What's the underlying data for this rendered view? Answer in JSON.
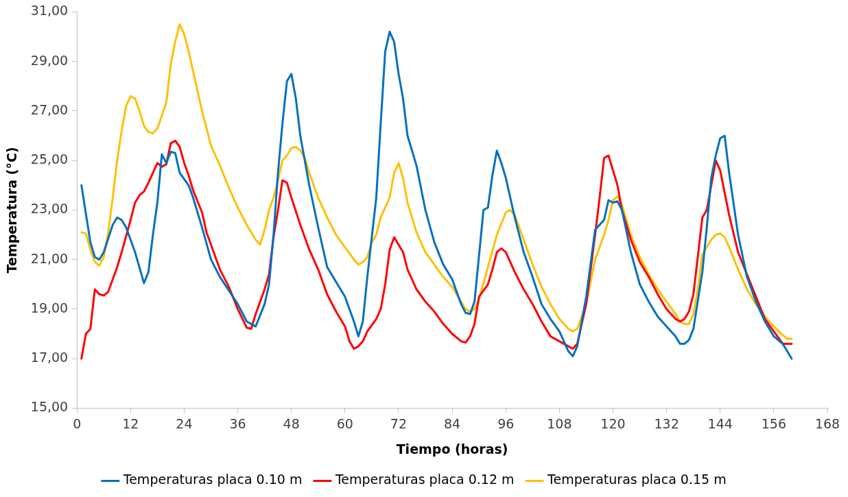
{
  "chart_data": {
    "type": "line",
    "xlabel": "Tiempo (horas)",
    "ylabel": "Temperatura (°C)",
    "xlim": [
      0,
      168
    ],
    "xticks": [
      0,
      12,
      24,
      36,
      48,
      60,
      72,
      84,
      96,
      108,
      120,
      132,
      144,
      156,
      168
    ],
    "ylim": [
      15,
      31
    ],
    "yticks": [
      {
        "value": 15,
        "label": "15,00"
      },
      {
        "value": 17,
        "label": "17,00"
      },
      {
        "value": 19,
        "label": "19,00"
      },
      {
        "value": 21,
        "label": "21,00"
      },
      {
        "value": 23,
        "label": "23,00"
      },
      {
        "value": 25,
        "label": "25,00"
      },
      {
        "value": 27,
        "label": "27,00"
      },
      {
        "value": 29,
        "label": "29,00"
      },
      {
        "value": 31,
        "label": "31,00"
      }
    ],
    "grid": false,
    "legend": "bottom",
    "marker": "none",
    "line_style": "solid",
    "series": [
      {
        "name": "Temperaturas placa 0.10 m",
        "color": "#0070c0",
        "x": [
          1,
          3,
          4,
          5,
          6,
          8,
          9,
          10,
          11,
          13,
          15,
          16,
          17,
          18,
          19,
          20,
          21,
          22,
          23,
          25,
          26,
          28,
          30,
          32,
          36,
          38,
          40,
          42,
          43,
          44,
          45,
          46,
          47,
          48,
          49,
          50,
          52,
          54,
          56,
          58,
          60,
          62,
          63,
          64,
          65,
          67,
          68,
          69,
          70,
          71,
          72,
          73,
          74,
          76,
          78,
          80,
          82,
          84,
          86,
          87,
          88,
          89,
          91,
          92,
          93,
          94,
          95,
          96,
          98,
          100,
          102,
          104,
          106,
          108,
          110,
          111,
          112,
          114,
          116,
          118,
          119,
          120,
          121,
          122,
          124,
          126,
          128,
          130,
          132,
          134,
          135,
          136,
          137,
          138,
          140,
          141,
          142,
          143,
          144,
          145,
          146,
          148,
          150,
          152,
          154,
          156,
          158,
          159,
          160
        ],
        "values": [
          24.0,
          21.7,
          21.1,
          21.0,
          21.3,
          22.4,
          22.7,
          22.6,
          22.3,
          21.3,
          20.05,
          20.5,
          22.0,
          23.3,
          25.25,
          24.9,
          25.35,
          25.3,
          24.5,
          24.0,
          23.5,
          22.3,
          21.0,
          20.3,
          19.2,
          18.5,
          18.3,
          19.2,
          20.0,
          22.0,
          24.5,
          26.5,
          28.2,
          28.5,
          27.5,
          26.0,
          24.0,
          22.3,
          20.7,
          20.1,
          19.5,
          18.5,
          17.9,
          18.5,
          20.3,
          23.5,
          26.5,
          29.4,
          30.2,
          29.8,
          28.5,
          27.5,
          26.0,
          24.8,
          23.0,
          21.7,
          20.8,
          20.2,
          19.2,
          18.85,
          18.8,
          19.3,
          23.0,
          23.1,
          24.4,
          25.4,
          24.9,
          24.3,
          22.7,
          21.3,
          20.3,
          19.2,
          18.6,
          18.1,
          17.3,
          17.1,
          17.5,
          19.5,
          22.2,
          22.6,
          23.4,
          23.3,
          23.35,
          23.0,
          21.3,
          20.0,
          19.3,
          18.7,
          18.3,
          17.9,
          17.6,
          17.6,
          17.75,
          18.2,
          20.5,
          22.3,
          24.3,
          25.2,
          25.9,
          26.0,
          24.5,
          22.0,
          20.3,
          19.3,
          18.5,
          17.9,
          17.6,
          17.3,
          17.0
        ]
      },
      {
        "name": "Temperaturas placa 0.12 m",
        "color": "#ff0000",
        "x": [
          1,
          2,
          3,
          4,
          5,
          6,
          7,
          8,
          9,
          10,
          12,
          13,
          14,
          15,
          16,
          17,
          18,
          19,
          20,
          21,
          22,
          23,
          24,
          25,
          26,
          28,
          29,
          30,
          32,
          34,
          36,
          38,
          39,
          40,
          42,
          43,
          44,
          45,
          46,
          47,
          48,
          50,
          52,
          54,
          56,
          58,
          60,
          61,
          62,
          63,
          64,
          65,
          67,
          68,
          69,
          70,
          71,
          72,
          73,
          74,
          76,
          78,
          80,
          82,
          84,
          86,
          87,
          88,
          89,
          90,
          92,
          93,
          94,
          95,
          96,
          98,
          100,
          102,
          104,
          106,
          108,
          110,
          111,
          112,
          114,
          116,
          117,
          118,
          119,
          121,
          122,
          124,
          126,
          128,
          130,
          132,
          134,
          135,
          136,
          137,
          138,
          140,
          141,
          142,
          143,
          144,
          146,
          148,
          150,
          152,
          154,
          156,
          158,
          160
        ],
        "values": [
          17.0,
          18.0,
          18.2,
          19.8,
          19.6,
          19.55,
          19.7,
          20.2,
          20.7,
          21.3,
          22.6,
          23.3,
          23.6,
          23.75,
          24.1,
          24.5,
          24.9,
          24.75,
          24.85,
          25.7,
          25.8,
          25.55,
          24.9,
          24.4,
          23.8,
          22.9,
          22.1,
          21.6,
          20.6,
          19.9,
          19.0,
          18.25,
          18.2,
          18.8,
          19.8,
          20.4,
          21.9,
          23.0,
          24.2,
          24.1,
          23.5,
          22.4,
          21.4,
          20.6,
          19.6,
          18.9,
          18.3,
          17.7,
          17.4,
          17.5,
          17.7,
          18.1,
          18.6,
          19.0,
          20.0,
          21.4,
          21.9,
          21.6,
          21.3,
          20.6,
          19.8,
          19.3,
          18.9,
          18.4,
          18.0,
          17.7,
          17.65,
          17.9,
          18.4,
          19.5,
          20.0,
          20.6,
          21.3,
          21.45,
          21.3,
          20.5,
          19.8,
          19.2,
          18.5,
          17.9,
          17.7,
          17.5,
          17.4,
          17.6,
          19.2,
          22.0,
          23.5,
          25.1,
          25.2,
          24.0,
          23.0,
          21.8,
          20.9,
          20.3,
          19.6,
          19.0,
          18.6,
          18.5,
          18.6,
          18.9,
          19.6,
          22.7,
          23.0,
          24.0,
          25.0,
          24.6,
          22.8,
          21.3,
          20.4,
          19.5,
          18.6,
          18.1,
          17.6,
          17.6
        ]
      },
      {
        "name": "Temperaturas placa 0.15 m",
        "color": "#ffc000",
        "x": [
          1,
          2,
          3,
          4,
          5,
          6,
          7,
          8,
          9,
          10,
          11,
          12,
          13,
          14,
          15,
          16,
          17,
          18,
          19,
          20,
          21,
          22,
          23,
          24,
          25,
          26,
          28,
          30,
          32,
          34,
          36,
          38,
          40,
          41,
          42,
          43,
          44,
          45,
          46,
          47,
          48,
          49,
          50,
          51,
          52,
          54,
          56,
          58,
          60,
          62,
          63,
          64,
          65,
          66,
          67,
          68,
          70,
          71,
          72,
          73,
          74,
          76,
          78,
          80,
          82,
          84,
          86,
          87,
          88,
          89,
          90,
          92,
          94,
          96,
          97,
          98,
          100,
          102,
          104,
          106,
          108,
          110,
          111,
          112,
          114,
          116,
          118,
          119,
          120,
          121,
          122,
          124,
          126,
          128,
          130,
          132,
          134,
          135,
          136,
          137,
          138,
          139,
          140,
          141,
          142,
          143,
          144,
          145,
          146,
          148,
          150,
          152,
          154,
          156,
          158,
          159,
          160
        ],
        "values": [
          22.1,
          22.05,
          21.4,
          20.9,
          20.75,
          21.1,
          22.1,
          23.5,
          25.0,
          26.2,
          27.2,
          27.6,
          27.5,
          27.0,
          26.4,
          26.15,
          26.1,
          26.3,
          26.8,
          27.35,
          28.9,
          29.8,
          30.5,
          30.1,
          29.4,
          28.6,
          27.0,
          25.6,
          24.8,
          23.9,
          23.1,
          22.4,
          21.8,
          21.6,
          22.2,
          23.0,
          23.5,
          24.2,
          25.0,
          25.2,
          25.5,
          25.55,
          25.4,
          25.1,
          24.5,
          23.5,
          22.7,
          22.0,
          21.5,
          21.0,
          20.8,
          20.9,
          21.1,
          21.7,
          22.0,
          22.7,
          23.5,
          24.5,
          24.9,
          24.3,
          23.3,
          22.1,
          21.3,
          20.8,
          20.3,
          19.9,
          19.3,
          19.0,
          18.9,
          19.0,
          19.4,
          20.7,
          22.0,
          22.9,
          23.0,
          22.8,
          21.8,
          20.8,
          19.9,
          19.2,
          18.6,
          18.2,
          18.1,
          18.2,
          19.2,
          21.0,
          22.0,
          22.6,
          23.4,
          23.55,
          23.2,
          22.0,
          21.1,
          20.4,
          19.8,
          19.3,
          18.8,
          18.5,
          18.4,
          18.4,
          18.8,
          19.8,
          21.2,
          21.5,
          21.8,
          22.0,
          22.05,
          21.9,
          21.5,
          20.6,
          19.8,
          19.2,
          18.7,
          18.3,
          17.95,
          17.8,
          17.8
        ]
      }
    ]
  }
}
